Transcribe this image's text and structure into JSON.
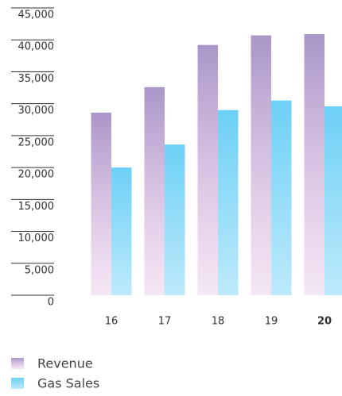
{
  "chart_data": {
    "type": "bar",
    "categories": [
      "16",
      "17",
      "18",
      "19",
      "20"
    ],
    "series": [
      {
        "name": "Revenue",
        "color": "#a996c8",
        "values": [
          28600,
          32600,
          39200,
          40700,
          40900
        ]
      },
      {
        "name": "Gas Sales",
        "color": "#6dd0f6",
        "values": [
          20000,
          23600,
          29000,
          30500,
          29600
        ]
      }
    ],
    "ylim": [
      0,
      45000
    ],
    "yticks": [
      0,
      {
        "value": 5000,
        "label": "5,000"
      },
      {
        "value": 10000,
        "label": "10,000"
      },
      {
        "value": 15000,
        "label": "15,000"
      },
      {
        "value": 20000,
        "label": "20,000"
      },
      {
        "value": 25000,
        "label": "25,000"
      },
      {
        "value": 30000,
        "label": "30,000"
      },
      {
        "value": 35000,
        "label": "35,000"
      },
      {
        "value": 40000,
        "label": "40,000"
      },
      {
        "value": 45000,
        "label": "45,000"
      }
    ]
  }
}
